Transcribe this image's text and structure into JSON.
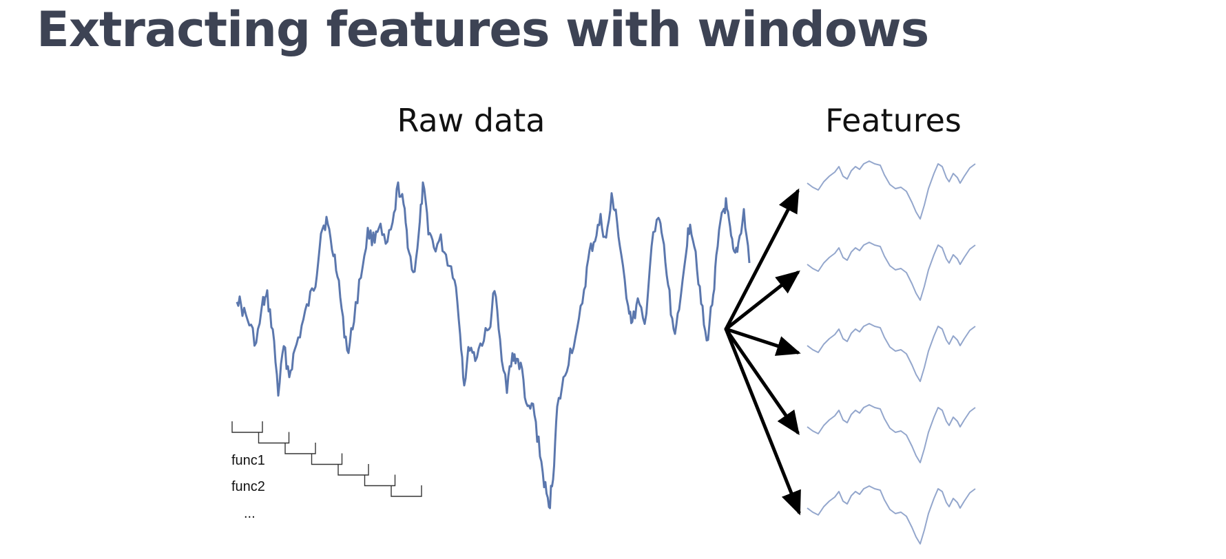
{
  "slide": {
    "title": "Extracting features with windows"
  },
  "diagram": {
    "raw_heading": "Raw data",
    "features_heading": "Features",
    "func_labels": [
      "func1",
      "func2",
      "..."
    ],
    "window_count": 7,
    "feature_count": 5
  },
  "colors": {
    "title": "#3d4354",
    "raw_series": "#5b77ad",
    "feature_series": "#93a6cc",
    "arrows": "#000000",
    "windows": "#333333"
  }
}
